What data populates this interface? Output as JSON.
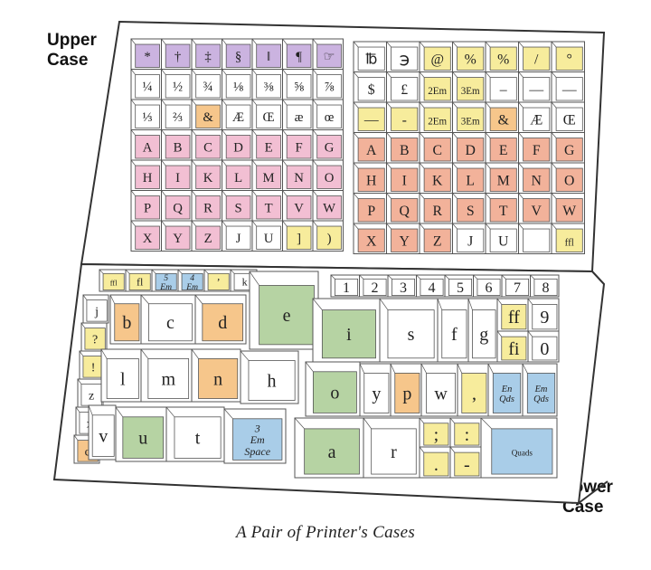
{
  "labels": {
    "upper": "Upper\nCase",
    "lower": "Lower\nCase"
  },
  "caption": "A Pair of Printer's Cases",
  "colors": {
    "purple": "#cbb3e0",
    "pink": "#f2bfd3",
    "salmon": "#f2b29a",
    "yellow": "#f7ec9c",
    "orange": "#f6c68b",
    "green": "#b6d3a3",
    "blue": "#a9cde8",
    "white": "#ffffff",
    "line": "#555555"
  },
  "upper_left_rows": [
    [
      [
        "*",
        "purple"
      ],
      [
        "†",
        "purple"
      ],
      [
        "‡",
        "purple"
      ],
      [
        "§",
        "purple"
      ],
      [
        "‖",
        "purple"
      ],
      [
        "¶",
        "purple"
      ],
      [
        "☞",
        "purple"
      ]
    ],
    [
      [
        "¼",
        "white"
      ],
      [
        "½",
        "white"
      ],
      [
        "¾",
        "white"
      ],
      [
        "⅛",
        "white"
      ],
      [
        "⅜",
        "white"
      ],
      [
        "⅝",
        "white"
      ],
      [
        "⅞",
        "white"
      ]
    ],
    [
      [
        "⅓",
        "white"
      ],
      [
        "⅔",
        "white"
      ],
      [
        "&",
        "orange"
      ],
      [
        "Æ",
        "white"
      ],
      [
        "Œ",
        "white"
      ],
      [
        "æ",
        "white"
      ],
      [
        "œ",
        "white"
      ]
    ],
    [
      [
        "A",
        "pink"
      ],
      [
        "B",
        "pink"
      ],
      [
        "C",
        "pink"
      ],
      [
        "D",
        "pink"
      ],
      [
        "E",
        "pink"
      ],
      [
        "F",
        "pink"
      ],
      [
        "G",
        "pink"
      ]
    ],
    [
      [
        "H",
        "pink"
      ],
      [
        "I",
        "pink"
      ],
      [
        "K",
        "pink"
      ],
      [
        "L",
        "pink"
      ],
      [
        "M",
        "pink"
      ],
      [
        "N",
        "pink"
      ],
      [
        "O",
        "pink"
      ]
    ],
    [
      [
        "P",
        "pink"
      ],
      [
        "Q",
        "pink"
      ],
      [
        "R",
        "pink"
      ],
      [
        "S",
        "pink"
      ],
      [
        "T",
        "pink"
      ],
      [
        "V",
        "pink"
      ],
      [
        "W",
        "pink"
      ]
    ],
    [
      [
        "X",
        "pink"
      ],
      [
        "Y",
        "pink"
      ],
      [
        "Z",
        "pink"
      ],
      [
        "J",
        "white"
      ],
      [
        "U",
        "white"
      ],
      [
        "]",
        "yellow"
      ],
      [
        ")",
        "yellow"
      ]
    ]
  ],
  "upper_right_rows": [
    [
      [
        "℔",
        "white"
      ],
      [
        "℈",
        "white"
      ],
      [
        "@",
        "yellow"
      ],
      [
        "%",
        "yellow"
      ],
      [
        "%",
        "yellow"
      ],
      [
        "/",
        "yellow"
      ],
      [
        "°",
        "yellow"
      ]
    ],
    [
      [
        "$",
        "white"
      ],
      [
        "£",
        "white"
      ],
      [
        "2Em",
        "yellow"
      ],
      [
        "3Em",
        "yellow"
      ],
      [
        "–",
        "white"
      ],
      [
        "—",
        "white"
      ],
      [
        "—",
        "white"
      ]
    ],
    [
      [
        "—",
        "yellow"
      ],
      [
        "-",
        "yellow"
      ],
      [
        "2Em",
        "yellow"
      ],
      [
        "3Em",
        "yellow"
      ],
      [
        "&",
        "orange"
      ],
      [
        "Æ",
        "white"
      ],
      [
        "Œ",
        "white"
      ]
    ],
    [
      [
        "A",
        "salmon"
      ],
      [
        "B",
        "salmon"
      ],
      [
        "C",
        "salmon"
      ],
      [
        "D",
        "salmon"
      ],
      [
        "E",
        "salmon"
      ],
      [
        "F",
        "salmon"
      ],
      [
        "G",
        "salmon"
      ]
    ],
    [
      [
        "H",
        "salmon"
      ],
      [
        "I",
        "salmon"
      ],
      [
        "K",
        "salmon"
      ],
      [
        "L",
        "salmon"
      ],
      [
        "M",
        "salmon"
      ],
      [
        "N",
        "salmon"
      ],
      [
        "O",
        "salmon"
      ]
    ],
    [
      [
        "P",
        "salmon"
      ],
      [
        "Q",
        "salmon"
      ],
      [
        "R",
        "salmon"
      ],
      [
        "S",
        "salmon"
      ],
      [
        "T",
        "salmon"
      ],
      [
        "V",
        "salmon"
      ],
      [
        "W",
        "salmon"
      ]
    ],
    [
      [
        "X",
        "salmon"
      ],
      [
        "Y",
        "salmon"
      ],
      [
        "Z",
        "salmon"
      ],
      [
        "J",
        "white"
      ],
      [
        "U",
        "white"
      ],
      [
        "",
        "white"
      ],
      [
        "ffl",
        "yellow"
      ]
    ]
  ],
  "lower_left": {
    "top_row": [
      [
        "ffl",
        "yellow"
      ],
      [
        "fl",
        "yellow"
      ],
      [
        "5 Em",
        "blue"
      ],
      [
        "4 Em",
        "blue"
      ],
      [
        "’",
        "yellow"
      ],
      [
        "k",
        "white"
      ]
    ],
    "left_col": [
      [
        "j",
        "white"
      ],
      [
        "?",
        "yellow"
      ],
      [
        "!",
        "yellow"
      ],
      [
        "z",
        "white"
      ],
      [
        "x",
        "white"
      ],
      [
        "q",
        "orange"
      ]
    ],
    "mid": [
      [
        "b",
        "orange"
      ],
      [
        "c",
        "white"
      ],
      [
        "d",
        "orange"
      ],
      [
        "e",
        "green"
      ],
      [
        "l",
        "white"
      ],
      [
        "m",
        "white"
      ],
      [
        "n",
        "orange"
      ],
      [
        "h",
        "white"
      ],
      [
        "v",
        "white"
      ],
      [
        "u",
        "green"
      ],
      [
        "t",
        "white"
      ],
      [
        "3 Em Space",
        "blue"
      ]
    ]
  },
  "lower_right": {
    "top_row": [
      [
        "1",
        "white"
      ],
      [
        "2",
        "white"
      ],
      [
        "3",
        "white"
      ],
      [
        "4",
        "white"
      ],
      [
        "5",
        "white"
      ],
      [
        "6",
        "white"
      ],
      [
        "7",
        "white"
      ],
      [
        "8",
        "white"
      ]
    ],
    "cells": [
      [
        "i",
        "green"
      ],
      [
        "s",
        "white"
      ],
      [
        "f",
        "white"
      ],
      [
        "g",
        "white"
      ],
      [
        "ff",
        "yellow"
      ],
      [
        "9",
        "white"
      ],
      [
        "fi",
        "yellow"
      ],
      [
        "0",
        "white"
      ],
      [
        "o",
        "green"
      ],
      [
        "y",
        "white"
      ],
      [
        "p",
        "orange"
      ],
      [
        "w",
        "white"
      ],
      [
        "‚",
        "yellow"
      ],
      [
        "En Qds",
        "blue"
      ],
      [
        "Em Qds",
        "blue"
      ],
      [
        "a",
        "green"
      ],
      [
        "r",
        "white"
      ],
      [
        ";",
        "yellow"
      ],
      [
        ":",
        "yellow"
      ],
      [
        ".",
        "yellow"
      ],
      [
        "-",
        "yellow"
      ],
      [
        "Quads",
        "blue"
      ]
    ]
  }
}
